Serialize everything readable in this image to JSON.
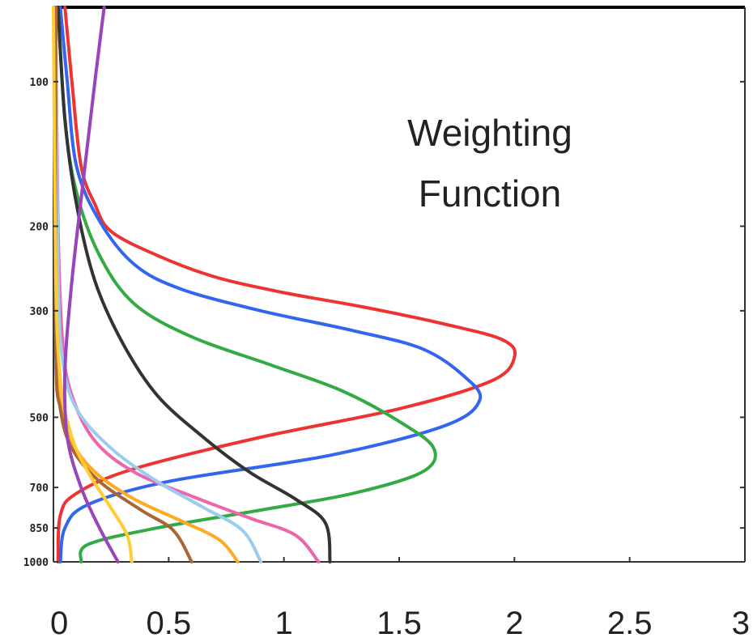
{
  "chart_data": {
    "type": "line",
    "title_lines": [
      "Weighting",
      "Function"
    ],
    "xlabel": "",
    "ylabel": "",
    "xlim": [
      0,
      3
    ],
    "x_ticks": [
      0,
      0.5,
      1,
      1.5,
      2,
      2.5,
      3
    ],
    "x_tick_labels": [
      "0",
      "0.5",
      "1",
      "1.5",
      "2",
      "2.5",
      "3"
    ],
    "y_scale": "log",
    "y_reversed": true,
    "y_ticks": [
      100,
      200,
      300,
      500,
      700,
      850,
      1000
    ],
    "y_tick_labels": [
      "100",
      "200",
      "300",
      "500",
      "700",
      "850",
      "1000"
    ],
    "ylim": [
      70,
      1000
    ],
    "grid": false,
    "series": [
      {
        "color": "#ee3333",
        "points": [
          [
            0.05,
            70
          ],
          [
            0.08,
            100
          ],
          [
            0.12,
            150
          ],
          [
            0.18,
            180
          ],
          [
            0.25,
            205
          ],
          [
            0.45,
            230
          ],
          [
            0.7,
            255
          ],
          [
            1.0,
            275
          ],
          [
            1.35,
            295
          ],
          [
            1.7,
            320
          ],
          [
            1.95,
            345
          ],
          [
            2.0,
            375
          ],
          [
            1.9,
            420
          ],
          [
            1.5,
            480
          ],
          [
            0.9,
            550
          ],
          [
            0.35,
            640
          ],
          [
            0.1,
            720
          ],
          [
            0.03,
            800
          ],
          [
            0.02,
            1000
          ]
        ]
      },
      {
        "color": "#3366ee",
        "points": [
          [
            0.03,
            70
          ],
          [
            0.06,
            100
          ],
          [
            0.1,
            150
          ],
          [
            0.2,
            195
          ],
          [
            0.35,
            240
          ],
          [
            0.55,
            270
          ],
          [
            0.9,
            300
          ],
          [
            1.3,
            330
          ],
          [
            1.6,
            360
          ],
          [
            1.78,
            410
          ],
          [
            1.85,
            460
          ],
          [
            1.7,
            520
          ],
          [
            1.2,
            600
          ],
          [
            0.5,
            680
          ],
          [
            0.15,
            760
          ],
          [
            0.05,
            850
          ],
          [
            0.03,
            1000
          ]
        ]
      },
      {
        "color": "#33aa44",
        "points": [
          [
            0.02,
            70
          ],
          [
            0.05,
            120
          ],
          [
            0.1,
            170
          ],
          [
            0.2,
            230
          ],
          [
            0.35,
            290
          ],
          [
            0.6,
            340
          ],
          [
            0.95,
            390
          ],
          [
            1.25,
            440
          ],
          [
            1.5,
            510
          ],
          [
            1.65,
            580
          ],
          [
            1.6,
            650
          ],
          [
            1.3,
            720
          ],
          [
            0.9,
            780
          ],
          [
            0.45,
            850
          ],
          [
            0.15,
            920
          ],
          [
            0.12,
            1000
          ]
        ]
      },
      {
        "color": "#333333",
        "points": [
          [
            0.02,
            70
          ],
          [
            0.05,
            120
          ],
          [
            0.1,
            180
          ],
          [
            0.18,
            260
          ],
          [
            0.3,
            350
          ],
          [
            0.45,
            450
          ],
          [
            0.65,
            550
          ],
          [
            0.85,
            650
          ],
          [
            1.05,
            740
          ],
          [
            1.18,
            830
          ],
          [
            1.2,
            1000
          ]
        ]
      },
      {
        "color": "#ee66aa",
        "points": [
          [
            0.01,
            70
          ],
          [
            0.02,
            200
          ],
          [
            0.04,
            350
          ],
          [
            0.08,
            450
          ],
          [
            0.18,
            560
          ],
          [
            0.35,
            650
          ],
          [
            0.6,
            730
          ],
          [
            0.85,
            810
          ],
          [
            1.05,
            880
          ],
          [
            1.15,
            1000
          ]
        ]
      },
      {
        "color": "#99ccee",
        "points": [
          [
            0.01,
            70
          ],
          [
            0.02,
            250
          ],
          [
            0.04,
            380
          ],
          [
            0.1,
            480
          ],
          [
            0.25,
            580
          ],
          [
            0.45,
            680
          ],
          [
            0.65,
            770
          ],
          [
            0.82,
            860
          ],
          [
            0.9,
            1000
          ]
        ]
      },
      {
        "color": "#ffaa22",
        "points": [
          [
            0.01,
            70
          ],
          [
            0.01,
            300
          ],
          [
            0.03,
            450
          ],
          [
            0.08,
            560
          ],
          [
            0.18,
            650
          ],
          [
            0.35,
            740
          ],
          [
            0.55,
            820
          ],
          [
            0.72,
            900
          ],
          [
            0.8,
            1000
          ]
        ]
      },
      {
        "color": "#aa6633",
        "points": [
          [
            0.01,
            70
          ],
          [
            0.01,
            350
          ],
          [
            0.03,
            480
          ],
          [
            0.08,
            580
          ],
          [
            0.2,
            680
          ],
          [
            0.38,
            780
          ],
          [
            0.52,
            860
          ],
          [
            0.6,
            1000
          ]
        ]
      },
      {
        "color": "#ffcc33",
        "points": [
          [
            0.0,
            70
          ],
          [
            0.01,
            250
          ],
          [
            0.03,
            420
          ],
          [
            0.08,
            550
          ],
          [
            0.15,
            650
          ],
          [
            0.24,
            760
          ],
          [
            0.32,
            880
          ],
          [
            0.34,
            1000
          ]
        ]
      },
      {
        "color": "#9944bb",
        "points": [
          [
            0.22,
            70
          ],
          [
            0.18,
            100
          ],
          [
            0.13,
            160
          ],
          [
            0.08,
            260
          ],
          [
            0.05,
            400
          ],
          [
            0.06,
            550
          ],
          [
            0.12,
            700
          ],
          [
            0.2,
            850
          ],
          [
            0.28,
            1000
          ]
        ]
      }
    ]
  }
}
